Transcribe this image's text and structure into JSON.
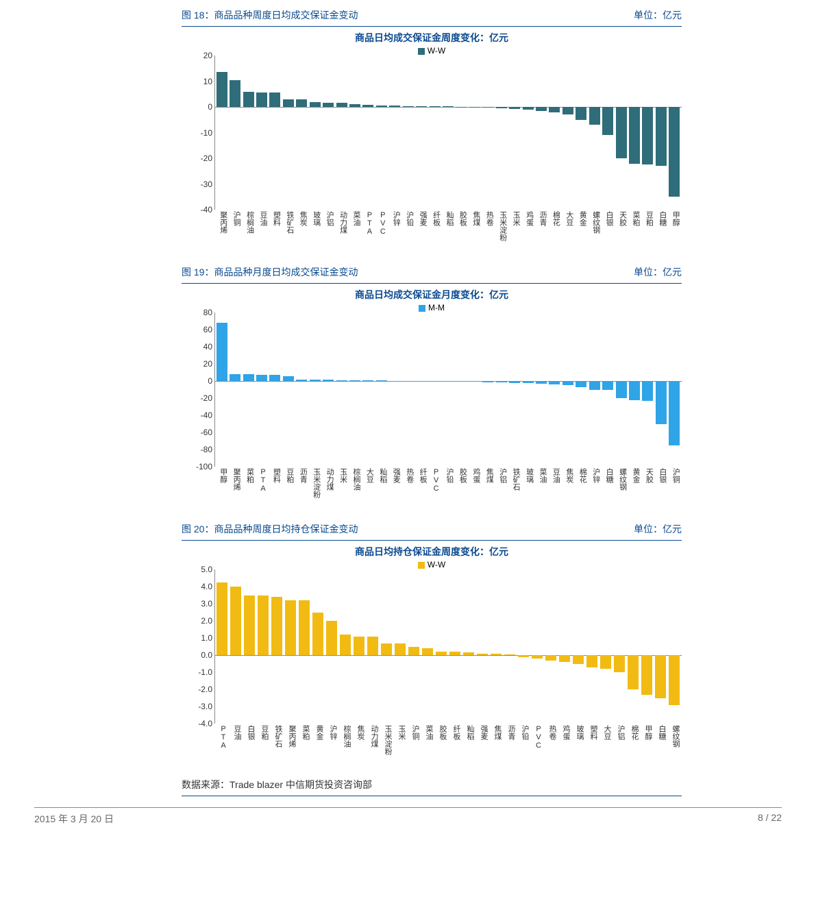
{
  "unit_label": "单位：亿元",
  "source_text": "数据来源：Trade blazer  中信期货投资咨询部",
  "footer_left": "2015 年 3 月 20 日",
  "footer_right": "8 / 22",
  "charts": [
    {
      "fig_label": "图 18：商品品种周度日均成交保证金变动",
      "title": "商品日均成交保证金周度变化：亿元",
      "legend": "W-W",
      "color": "#2f6d7a",
      "ymin": -40,
      "ymax": 20,
      "ystep": 10,
      "categories": [
        "聚丙烯",
        "沪铜",
        "棕榈油",
        "豆油",
        "塑料",
        "铁矿石",
        "焦炭",
        "玻璃",
        "沪铝",
        "动力煤",
        "菜油",
        "PTA",
        "PVC",
        "沪锌",
        "沪铅",
        "强麦",
        "纤板",
        "籼稻",
        "胶板",
        "焦煤",
        "热卷",
        "玉米淀粉",
        "玉米",
        "鸡蛋",
        "沥青",
        "棉花",
        "大豆",
        "黄金",
        "螺纹钢",
        "白银",
        "天胶",
        "菜粕",
        "豆粕",
        "白糖",
        "甲醇"
      ],
      "values": [
        13.5,
        10.5,
        6,
        5.5,
        5.5,
        3,
        3,
        2,
        1.5,
        1.5,
        1,
        0.8,
        0.6,
        0.5,
        0.4,
        0.3,
        0.2,
        0.2,
        0.1,
        -0.2,
        -0.3,
        -0.4,
        -0.8,
        -1,
        -1.5,
        -2,
        -3,
        -5,
        -7,
        -11,
        -20,
        -22,
        -22.5,
        -23,
        -35
      ]
    },
    {
      "fig_label": "图 19：商品品种月度日均成交保证金变动",
      "title": "商品日均成交保证金月度变化：亿元",
      "legend": "M-M",
      "color": "#2fa4e7",
      "ymin": -100,
      "ymax": 80,
      "ystep": 20,
      "categories": [
        "甲醇",
        "聚丙烯",
        "菜粕",
        "PTA",
        "塑料",
        "豆粕",
        "沥青",
        "玉米淀粉",
        "动力煤",
        "玉米",
        "棕榈油",
        "大豆",
        "籼稻",
        "强麦",
        "热卷",
        "纤板",
        "PVC",
        "沪铅",
        "胶板",
        "鸡蛋",
        "焦煤",
        "沪铝",
        "铁矿石",
        "玻璃",
        "菜油",
        "豆油",
        "焦炭",
        "棉花",
        "沪锌",
        "白糖",
        "螺纹钢",
        "黄金",
        "天胶",
        "白银",
        "沪铜"
      ],
      "values": [
        68,
        8,
        8,
        7,
        7,
        6,
        2,
        1.5,
        1.5,
        1,
        0.8,
        0.7,
        0.5,
        0.3,
        0.2,
        0.2,
        -0.5,
        -0.8,
        -1,
        -1,
        -1.2,
        -1.5,
        -2,
        -2.5,
        -3,
        -4,
        -5,
        -7,
        -10,
        -10,
        -20,
        -22,
        -23,
        -50,
        -75
      ]
    },
    {
      "fig_label": "图 20：商品品种周度日均持仓保证金变动",
      "title": "商品日均持仓保证金周度变化：亿元",
      "legend": "W-W",
      "color": "#f2bb13",
      "ymin": -4.0,
      "ymax": 5.0,
      "ystep": 1.0,
      "y_decimals": 1,
      "categories": [
        "PTA",
        "豆油",
        "白银",
        "豆粕",
        "铁矿石",
        "聚丙烯",
        "菜粕",
        "黄金",
        "沪锌",
        "棕榈油",
        "焦炭",
        "动力煤",
        "玉米淀粉",
        "玉米",
        "沪铜",
        "菜油",
        "胶板",
        "纤板",
        "籼稻",
        "强麦",
        "焦煤",
        "沥青",
        "沪铅",
        "PVC",
        "热卷",
        "鸡蛋",
        "玻璃",
        "塑料",
        "大豆",
        "沪铝",
        "棉花",
        "甲醇",
        "白糖",
        "螺纹钢"
      ],
      "values": [
        4.25,
        4.0,
        3.5,
        3.5,
        3.4,
        3.2,
        3.2,
        2.5,
        2.0,
        1.2,
        1.1,
        1.1,
        0.7,
        0.7,
        0.5,
        0.4,
        0.2,
        0.2,
        0.15,
        0.1,
        0.1,
        0.05,
        -0.1,
        -0.2,
        -0.3,
        -0.4,
        -0.5,
        -0.7,
        -0.8,
        -1.0,
        -2.0,
        -2.3,
        -2.5,
        -2.9
      ]
    }
  ]
}
